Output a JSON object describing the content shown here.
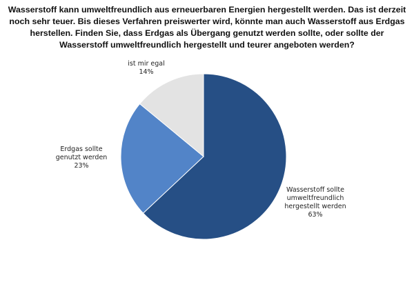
{
  "chart_data": {
    "type": "pie",
    "title": "Wasserstoff kann umweltfreundlich aus erneuerbaren Energien hergestellt werden. Das ist derzeit noch sehr teuer. Bis dieses Verfahren preiswerter wird, könnte man auch Wasserstoff aus Erdgas herstellen. Finden Sie, dass Erdgas als Übergang genutzt werden sollte, oder sollte der Wasserstoff umweltfreundlich hergestellt und teurer angeboten werden?",
    "slices": [
      {
        "label": [
          "Wasserstoff sollte",
          "umweltfreundlich",
          "hergestellt werden"
        ],
        "value": 63,
        "value_label": "63%",
        "color": "#264F85"
      },
      {
        "label": [
          "Erdgas sollte",
          "genutzt werden"
        ],
        "value": 23,
        "value_label": "23%",
        "color": "#5284C8"
      },
      {
        "label": [
          "ist mir egal"
        ],
        "value": 14,
        "value_label": "14%",
        "color": "#E3E3E3"
      }
    ]
  }
}
